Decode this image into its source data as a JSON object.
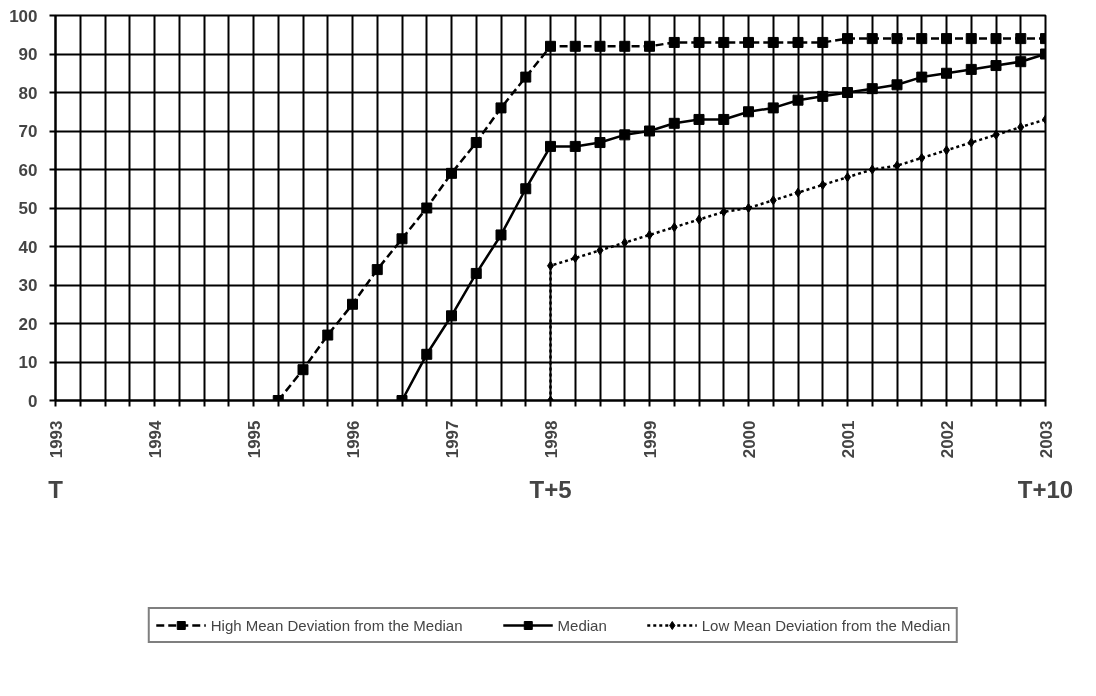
{
  "chart_data": {
    "type": "line",
    "annotations": [
      "T",
      "T+5",
      "T+10"
    ],
    "series": [
      {
        "name": "High Mean Deviation from the Median",
        "color": "#000000",
        "marker": "square",
        "line_style": "dashed",
        "x": [
          1995.25,
          1995.5,
          1995.75,
          1996,
          1996.25,
          1996.5,
          1996.75,
          1997,
          1997.25,
          1997.5,
          1997.75,
          1998,
          1998.25,
          1998.5,
          1998.75,
          1999,
          1999.25,
          1999.5,
          1999.75,
          2000,
          2000.25,
          2000.5,
          2000.75,
          2001,
          2001.25,
          2001.5,
          2001.75,
          2002,
          2002.25,
          2002.5,
          2002.75,
          2003
        ],
        "values": [
          0,
          8,
          17,
          25,
          34,
          42,
          50,
          59,
          67,
          76,
          84,
          92,
          92,
          92,
          92,
          92,
          93,
          93,
          93,
          93,
          93,
          93,
          93,
          94,
          94,
          94,
          94,
          94,
          94,
          94,
          94,
          94
        ]
      },
      {
        "name": "Median",
        "color": "#000000",
        "marker": "square",
        "line_style": "solid",
        "x": [
          1996.5,
          1996.75,
          1997,
          1997.25,
          1997.5,
          1997.75,
          1998,
          1998.25,
          1998.5,
          1998.75,
          1999,
          1999.25,
          1999.5,
          1999.75,
          2000,
          2000.25,
          2000.5,
          2000.75,
          2001,
          2001.25,
          2001.5,
          2001.75,
          2002,
          2002.25,
          2002.5,
          2002.75,
          2003
        ],
        "values": [
          0,
          12,
          22,
          33,
          43,
          55,
          66,
          66,
          67,
          69,
          70,
          72,
          73,
          73,
          75,
          76,
          78,
          79,
          80,
          81,
          82,
          84,
          85,
          86,
          87,
          88,
          90
        ]
      },
      {
        "name": "Low Mean Deviation from the Median",
        "color": "#000000",
        "marker": "diamond",
        "line_style": "dotted",
        "x": [
          1998,
          1998,
          1998.25,
          1998.5,
          1998.75,
          1999,
          1999.25,
          1999.5,
          1999.75,
          2000,
          2000.25,
          2000.5,
          2000.75,
          2001,
          2001.25,
          2001.5,
          2001.75,
          2002,
          2002.25,
          2002.5,
          2002.75,
          2003
        ],
        "values": [
          0,
          35,
          37,
          39,
          41,
          43,
          45,
          47,
          49,
          50,
          52,
          54,
          56,
          58,
          60,
          61,
          63,
          65,
          67,
          69,
          71,
          73
        ]
      }
    ],
    "xlim": [
      1993,
      2003
    ],
    "ylim": [
      0,
      100
    ],
    "xticks": [
      1993,
      {
        "value": 1993.25,
        "label": null
      },
      {
        "value": 1993.5,
        "label": null
      },
      {
        "value": 1993.75,
        "label": null
      },
      1994,
      {
        "value": 1994.25,
        "label": null
      },
      {
        "value": 1994.5,
        "label": null
      },
      {
        "value": 1994.75,
        "label": null
      },
      1995,
      {
        "value": 1995.25,
        "label": null
      },
      {
        "value": 1995.5,
        "label": null
      },
      {
        "value": 1995.75,
        "label": null
      },
      1996,
      {
        "value": 1996.25,
        "label": null
      },
      {
        "value": 1996.5,
        "label": null
      },
      {
        "value": 1996.75,
        "label": null
      },
      1997,
      {
        "value": 1997.25,
        "label": null
      },
      {
        "value": 1997.5,
        "label": null
      },
      {
        "value": 1997.75,
        "label": null
      },
      1998,
      {
        "value": 1998.25,
        "label": null
      },
      {
        "value": 1998.5,
        "label": null
      },
      {
        "value": 1998.75,
        "label": null
      },
      1999,
      {
        "value": 1999.25,
        "label": null
      },
      {
        "value": 1999.5,
        "label": null
      },
      {
        "value": 1999.75,
        "label": null
      },
      2000,
      {
        "value": 2000.25,
        "label": null
      },
      {
        "value": 2000.5,
        "label": null
      },
      {
        "value": 2000.75,
        "label": null
      },
      2001,
      {
        "value": 2001.25,
        "label": null
      },
      {
        "value": 2001.5,
        "label": null
      },
      {
        "value": 2001.75,
        "label": null
      },
      2002,
      {
        "value": 2002.25,
        "label": null
      },
      {
        "value": 2002.5,
        "label": null
      },
      {
        "value": 2002.75,
        "label": null
      },
      2003
    ],
    "yticks": [
      0,
      10,
      20,
      30,
      40,
      50,
      60,
      70,
      80,
      90,
      100
    ],
    "grid": true,
    "legend": "bottom"
  }
}
